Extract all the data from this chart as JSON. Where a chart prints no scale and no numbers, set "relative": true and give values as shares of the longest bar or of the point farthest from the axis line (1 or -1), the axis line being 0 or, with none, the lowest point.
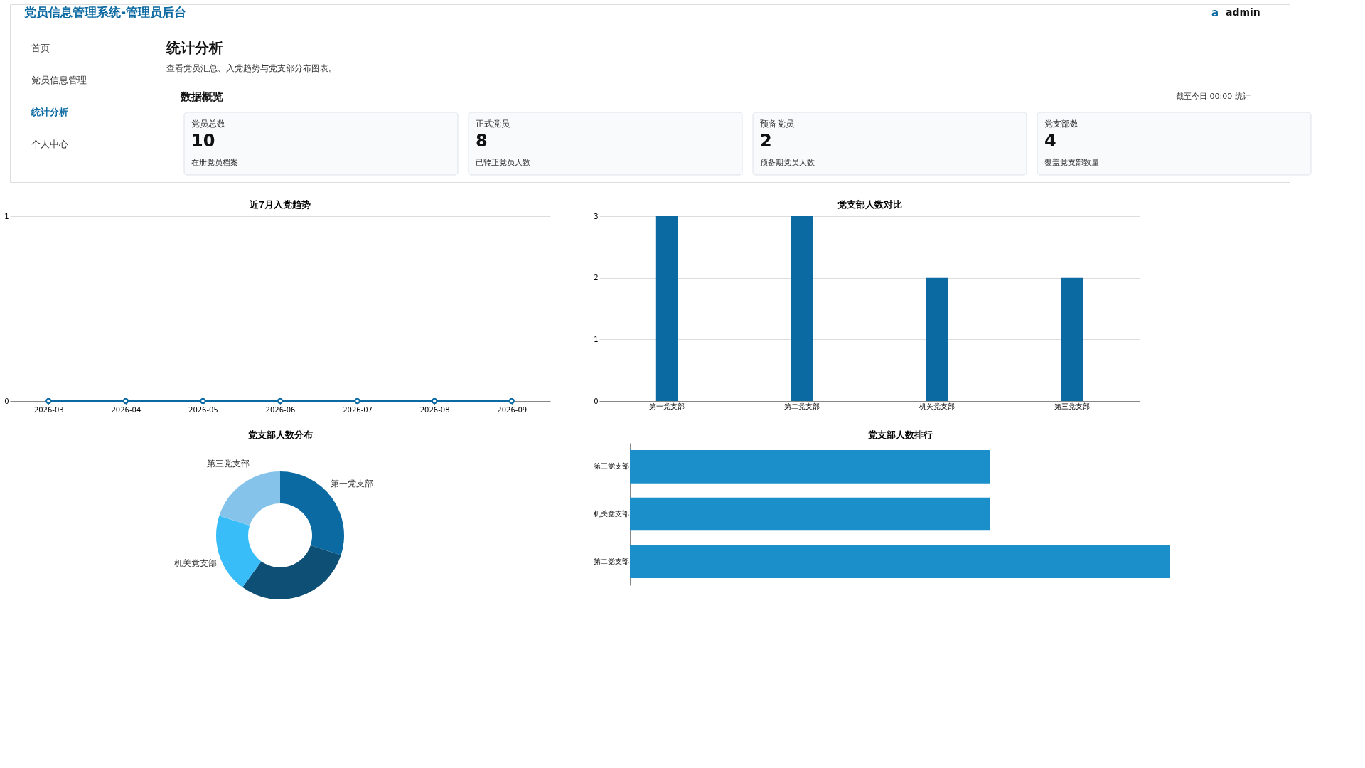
{
  "chart_data": [
    {
      "type": "other",
      "title": "统计分析",
      "subtitle": "查看党员汇总、入党趋势与党支部分布图表。",
      "annotations": [
        "党员信息管理系统-管理员后台",
        "a",
        "admin",
        "首页",
        "党员信息管理",
        "统计分析",
        "个人中心",
        "数据概览",
        "截至今日 00:00 统计",
        "党员总数",
        "10",
        "在册党员档案",
        "正式党员",
        "8",
        "已转正党员人数",
        "预备党员",
        "2",
        "预备期党员人数",
        "党支部数",
        "4",
        "覆盖党支部数量"
      ]
    },
    {
      "type": "line",
      "title": "近7月入党趋势",
      "categories": [
        "2026-03",
        "2026-04",
        "2026-05",
        "2026-06",
        "2026-07",
        "2026-08",
        "2026-09"
      ],
      "series": [
        {
          "color": "#0b6aa2",
          "values": [
            0,
            0,
            0,
            0,
            0,
            0,
            0
          ]
        }
      ],
      "ylim": [
        0,
        1
      ],
      "yticks": [
        0,
        1
      ],
      "grid": "y",
      "marker": "circle",
      "line_style": "solid"
    },
    {
      "type": "bar",
      "title": "党支部人数对比",
      "categories": [
        "第一党支部",
        "第二党支部",
        "机关党支部",
        "第三党支部"
      ],
      "series": [
        {
          "color": "#0b6aa2",
          "values": [
            3,
            3,
            2,
            2
          ]
        }
      ],
      "ylim": [
        0,
        3
      ],
      "yticks": [
        0,
        1,
        2,
        3
      ],
      "grid": "y"
    },
    {
      "type": "donut",
      "title": "党支部人数分布",
      "categories": [
        "第一党支部",
        null,
        "机关党支部",
        "第三党支部"
      ],
      "values": [
        30,
        30,
        20,
        20
      ],
      "colors": [
        "#0b6aa2",
        "#0d4f75",
        "#38bdf8",
        "#86c3ea"
      ]
    },
    {
      "type": "bar",
      "title": "党支部人数排行",
      "orientation": "horizontal",
      "relative": true,
      "categories": [
        "第三党支部",
        "机关党支部",
        "第二党支部"
      ],
      "series": [
        {
          "color": "#1a8fc9",
          "values": [
            0.667,
            0.667,
            1
          ]
        }
      ]
    }
  ]
}
